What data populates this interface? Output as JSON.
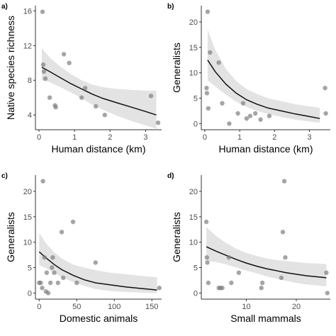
{
  "chart_data": [
    {
      "type": "scatter",
      "tag": "a)",
      "title": "",
      "xlabel": "Human distance (km)",
      "ylabel": "Native species richness",
      "xlim": [
        -0.1,
        3.45
      ],
      "ylim": [
        2.3,
        16.6
      ],
      "xticks": [
        0,
        1,
        2,
        3
      ],
      "yticks": [
        4,
        8,
        12,
        16
      ],
      "grid": false,
      "legend": "none",
      "points": [
        {
          "x": 0.1,
          "y": 15.9
        },
        {
          "x": 0.12,
          "y": 9.8
        },
        {
          "x": 0.14,
          "y": 9.0
        },
        {
          "x": 0.18,
          "y": 8.2
        },
        {
          "x": 0.3,
          "y": 6.0
        },
        {
          "x": 0.45,
          "y": 5.1
        },
        {
          "x": 0.47,
          "y": 4.9
        },
        {
          "x": 0.7,
          "y": 11.0
        },
        {
          "x": 0.85,
          "y": 10.0
        },
        {
          "x": 1.2,
          "y": 6.0
        },
        {
          "x": 1.3,
          "y": 7.1
        },
        {
          "x": 1.6,
          "y": 5.0
        },
        {
          "x": 1.85,
          "y": 4.0
        },
        {
          "x": 3.15,
          "y": 6.2
        },
        {
          "x": 3.35,
          "y": 3.1
        }
      ],
      "fit": {
        "x": [
          0.08,
          0.3,
          0.6,
          0.9,
          1.2,
          1.5,
          1.8,
          2.2,
          2.6,
          3.0,
          3.3
        ],
        "y": [
          9.5,
          9.0,
          8.3,
          7.6,
          7.0,
          6.4,
          5.9,
          5.4,
          4.9,
          4.4,
          4.0
        ],
        "lower": [
          8.0,
          7.8,
          7.2,
          6.6,
          5.9,
          5.2,
          4.6,
          3.9,
          3.3,
          2.8,
          2.4
        ],
        "upper": [
          11.7,
          10.6,
          9.6,
          8.7,
          8.0,
          7.5,
          7.2,
          7.0,
          6.9,
          6.8,
          6.8
        ]
      }
    },
    {
      "type": "scatter",
      "tag": "b)",
      "title": "",
      "xlabel": "Human distance (km)",
      "ylabel": "Generalists",
      "xlim": [
        -0.1,
        3.6
      ],
      "ylim": [
        -1.2,
        23.2
      ],
      "xticks": [
        0,
        1,
        2,
        3
      ],
      "yticks": [
        0,
        5,
        10,
        15,
        20
      ],
      "grid": false,
      "legend": "none",
      "points": [
        {
          "x": 0.05,
          "y": 7.0
        },
        {
          "x": 0.06,
          "y": 6.0
        },
        {
          "x": 0.08,
          "y": 22.0
        },
        {
          "x": 0.1,
          "y": 3.0
        },
        {
          "x": 0.15,
          "y": 14.0
        },
        {
          "x": 0.4,
          "y": 12.0
        },
        {
          "x": 0.5,
          "y": 4.0
        },
        {
          "x": 0.7,
          "y": 0.0
        },
        {
          "x": 0.95,
          "y": 2.0
        },
        {
          "x": 1.1,
          "y": 4.0
        },
        {
          "x": 1.2,
          "y": 1.0
        },
        {
          "x": 1.3,
          "y": 1.5
        },
        {
          "x": 1.45,
          "y": 2.0
        },
        {
          "x": 1.6,
          "y": 0.8
        },
        {
          "x": 1.85,
          "y": 1.5
        },
        {
          "x": 3.45,
          "y": 7.0
        },
        {
          "x": 3.47,
          "y": 2.0
        }
      ],
      "fit": {
        "x": [
          0.08,
          0.3,
          0.6,
          0.9,
          1.2,
          1.5,
          1.8,
          2.2,
          2.6,
          3.0,
          3.3
        ],
        "y": [
          12.5,
          10.2,
          7.8,
          6.0,
          4.7,
          3.8,
          3.1,
          2.5,
          1.9,
          1.4,
          1.0
        ],
        "lower": [
          8.5,
          7.3,
          5.7,
          4.3,
          3.3,
          2.5,
          1.9,
          1.3,
          0.8,
          0.4,
          0.2
        ],
        "upper": [
          18.5,
          14.5,
          10.8,
          8.4,
          6.8,
          5.8,
          5.0,
          4.4,
          3.8,
          3.4,
          3.1
        ]
      }
    },
    {
      "type": "scatter",
      "tag": "c)",
      "title": "",
      "xlabel": "Domestic animals",
      "ylabel": "Generalists",
      "xlim": [
        -5,
        163
      ],
      "ylim": [
        -1.2,
        23.2
      ],
      "xticks": [
        0,
        50,
        100,
        150
      ],
      "yticks": [
        0,
        5,
        10,
        15,
        20
      ],
      "grid": false,
      "legend": "none",
      "points": [
        {
          "x": 0,
          "y": 2.0
        },
        {
          "x": 2,
          "y": 2.0
        },
        {
          "x": 4,
          "y": 1.0
        },
        {
          "x": 5,
          "y": 22.0
        },
        {
          "x": 7,
          "y": 7.0
        },
        {
          "x": 9,
          "y": 0.3
        },
        {
          "x": 10,
          "y": 4.0
        },
        {
          "x": 12,
          "y": 0.0
        },
        {
          "x": 15,
          "y": 2.0
        },
        {
          "x": 17,
          "y": 5.0
        },
        {
          "x": 18,
          "y": 7.0
        },
        {
          "x": 20,
          "y": 4.0
        },
        {
          "x": 25,
          "y": 2.0
        },
        {
          "x": 30,
          "y": 12.0
        },
        {
          "x": 32,
          "y": 3.0
        },
        {
          "x": 45,
          "y": 14.0
        },
        {
          "x": 50,
          "y": 2.0
        },
        {
          "x": 75,
          "y": 6.0
        },
        {
          "x": 160,
          "y": 1.0
        }
      ],
      "fit": {
        "x": [
          0,
          10,
          20,
          30,
          45,
          60,
          75,
          95,
          115,
          135,
          157
        ],
        "y": [
          8.1,
          6.8,
          5.6,
          4.6,
          3.5,
          2.6,
          2.0,
          1.6,
          1.2,
          0.9,
          0.6
        ],
        "lower": [
          5.5,
          4.8,
          4.0,
          3.1,
          2.2,
          1.4,
          0.8,
          0.4,
          0.2,
          0.1,
          0.0
        ],
        "upper": [
          11.8,
          9.6,
          8.0,
          6.8,
          5.6,
          5.0,
          4.5,
          4.0,
          3.7,
          3.4,
          3.1
        ]
      }
    },
    {
      "type": "scatter",
      "tag": "d)",
      "title": "",
      "xlabel": "Small mammals",
      "ylabel": "Generalists",
      "xlim": [
        1,
        26.8
      ],
      "ylim": [
        -1.2,
        23.2
      ],
      "xticks": [
        10,
        20
      ],
      "yticks": [
        0,
        5,
        10,
        15,
        20
      ],
      "grid": false,
      "legend": "none",
      "points": [
        {
          "x": 2,
          "y": 14.0
        },
        {
          "x": 2.1,
          "y": 7.0
        },
        {
          "x": 2.2,
          "y": 6.0
        },
        {
          "x": 2.4,
          "y": 2.0
        },
        {
          "x": 4.5,
          "y": 1.0
        },
        {
          "x": 4.8,
          "y": 1.0
        },
        {
          "x": 5.2,
          "y": 1.0
        },
        {
          "x": 6.5,
          "y": 7.0
        },
        {
          "x": 7,
          "y": 2.0
        },
        {
          "x": 8.5,
          "y": 4.0
        },
        {
          "x": 13,
          "y": 1.0
        },
        {
          "x": 13.2,
          "y": 2.0
        },
        {
          "x": 17,
          "y": 3.0
        },
        {
          "x": 17.3,
          "y": 12.0
        },
        {
          "x": 17.6,
          "y": 22.0
        },
        {
          "x": 17.8,
          "y": 7.0
        },
        {
          "x": 26,
          "y": 4.0
        },
        {
          "x": 26.2,
          "y": 0.0
        }
      ],
      "fit": {
        "x": [
          2,
          4,
          6,
          8,
          10,
          12,
          14,
          16,
          18,
          20,
          22,
          24,
          26
        ],
        "y": [
          9.1,
          8.2,
          7.4,
          6.6,
          5.9,
          5.3,
          4.8,
          4.4,
          4.0,
          3.7,
          3.4,
          3.2,
          3.0
        ],
        "lower": [
          6.3,
          6.1,
          5.6,
          5.0,
          4.4,
          3.9,
          3.3,
          2.8,
          2.4,
          2.0,
          1.7,
          1.5,
          1.3
        ],
        "upper": [
          13.0,
          11.2,
          9.8,
          8.7,
          7.9,
          7.3,
          6.8,
          6.5,
          6.3,
          6.1,
          5.9,
          5.8,
          5.7
        ]
      }
    }
  ]
}
